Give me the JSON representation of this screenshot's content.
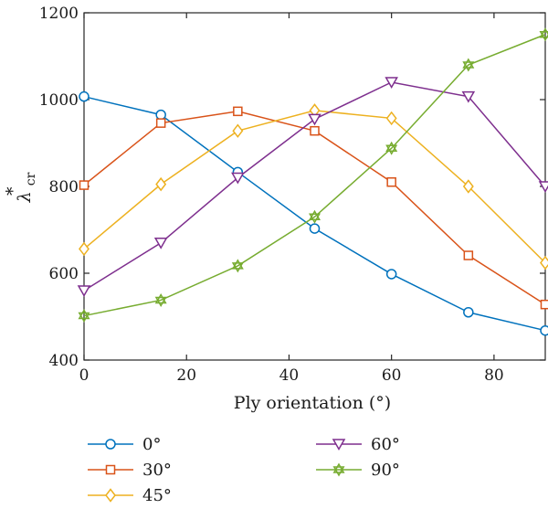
{
  "chart_data": {
    "type": "line",
    "title": "",
    "xlabel": "Ply orientation (°)",
    "ylabel": {
      "base": "λ",
      "sup": "*",
      "sub": "cr"
    },
    "xlim": [
      0,
      90
    ],
    "ylim": [
      400,
      1200
    ],
    "xticks": [
      0,
      20,
      40,
      60,
      80
    ],
    "yticks": [
      400,
      600,
      800,
      1000,
      1200
    ],
    "grid": false,
    "legend_position": "bottom",
    "x": [
      0,
      15,
      30,
      45,
      60,
      75,
      90
    ],
    "series": [
      {
        "name": "0°",
        "color": "#0072BD",
        "marker": "circle",
        "values": [
          1007,
          965,
          833,
          703,
          598,
          510,
          468
        ]
      },
      {
        "name": "30°",
        "color": "#D95319",
        "marker": "square",
        "values": [
          803,
          946,
          973,
          928,
          810,
          641,
          528
        ]
      },
      {
        "name": "45°",
        "color": "#EDB120",
        "marker": "diamond",
        "values": [
          656,
          805,
          928,
          975,
          957,
          800,
          624
        ]
      },
      {
        "name": "60°",
        "color": "#7E2F8E",
        "marker": "triangle-down",
        "values": [
          560,
          670,
          820,
          955,
          1040,
          1007,
          800
        ]
      },
      {
        "name": "90°",
        "color": "#77AC30",
        "marker": "hexagram",
        "values": [
          502,
          538,
          617,
          730,
          888,
          1080,
          1150
        ]
      }
    ]
  }
}
